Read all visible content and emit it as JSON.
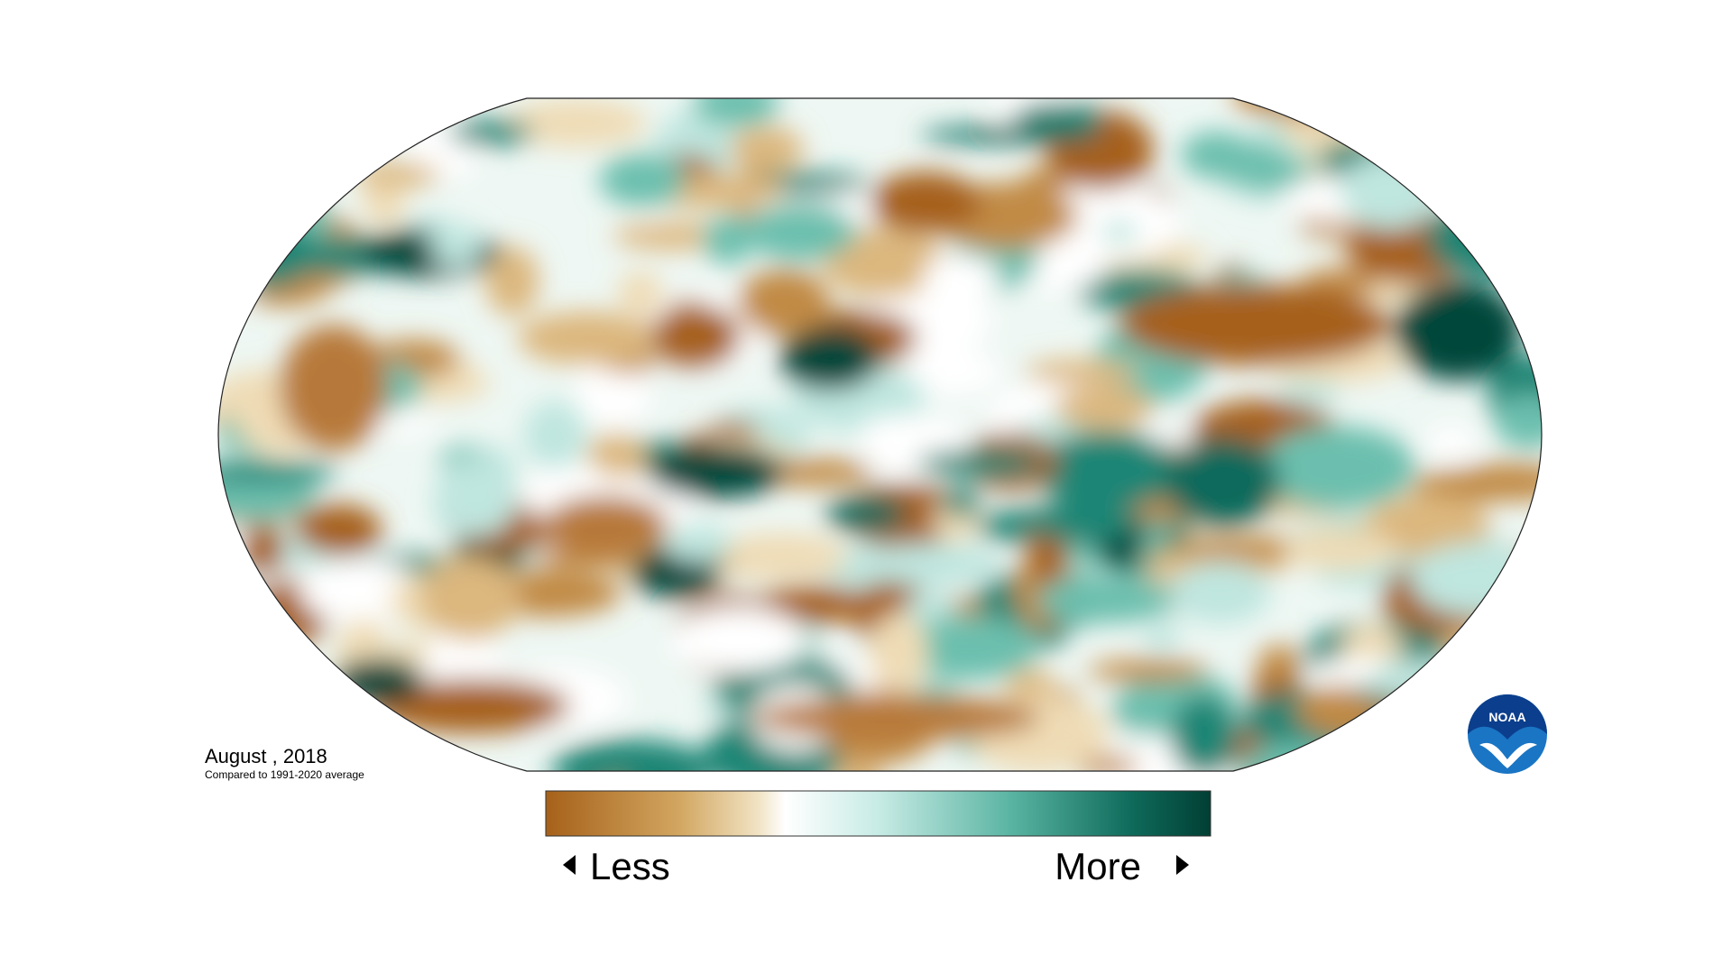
{
  "date": "August , 2018",
  "subtitle": "Compared to 1991-2020 average",
  "legend": {
    "low": "Less",
    "high": "More"
  },
  "logo": "NOAA"
}
